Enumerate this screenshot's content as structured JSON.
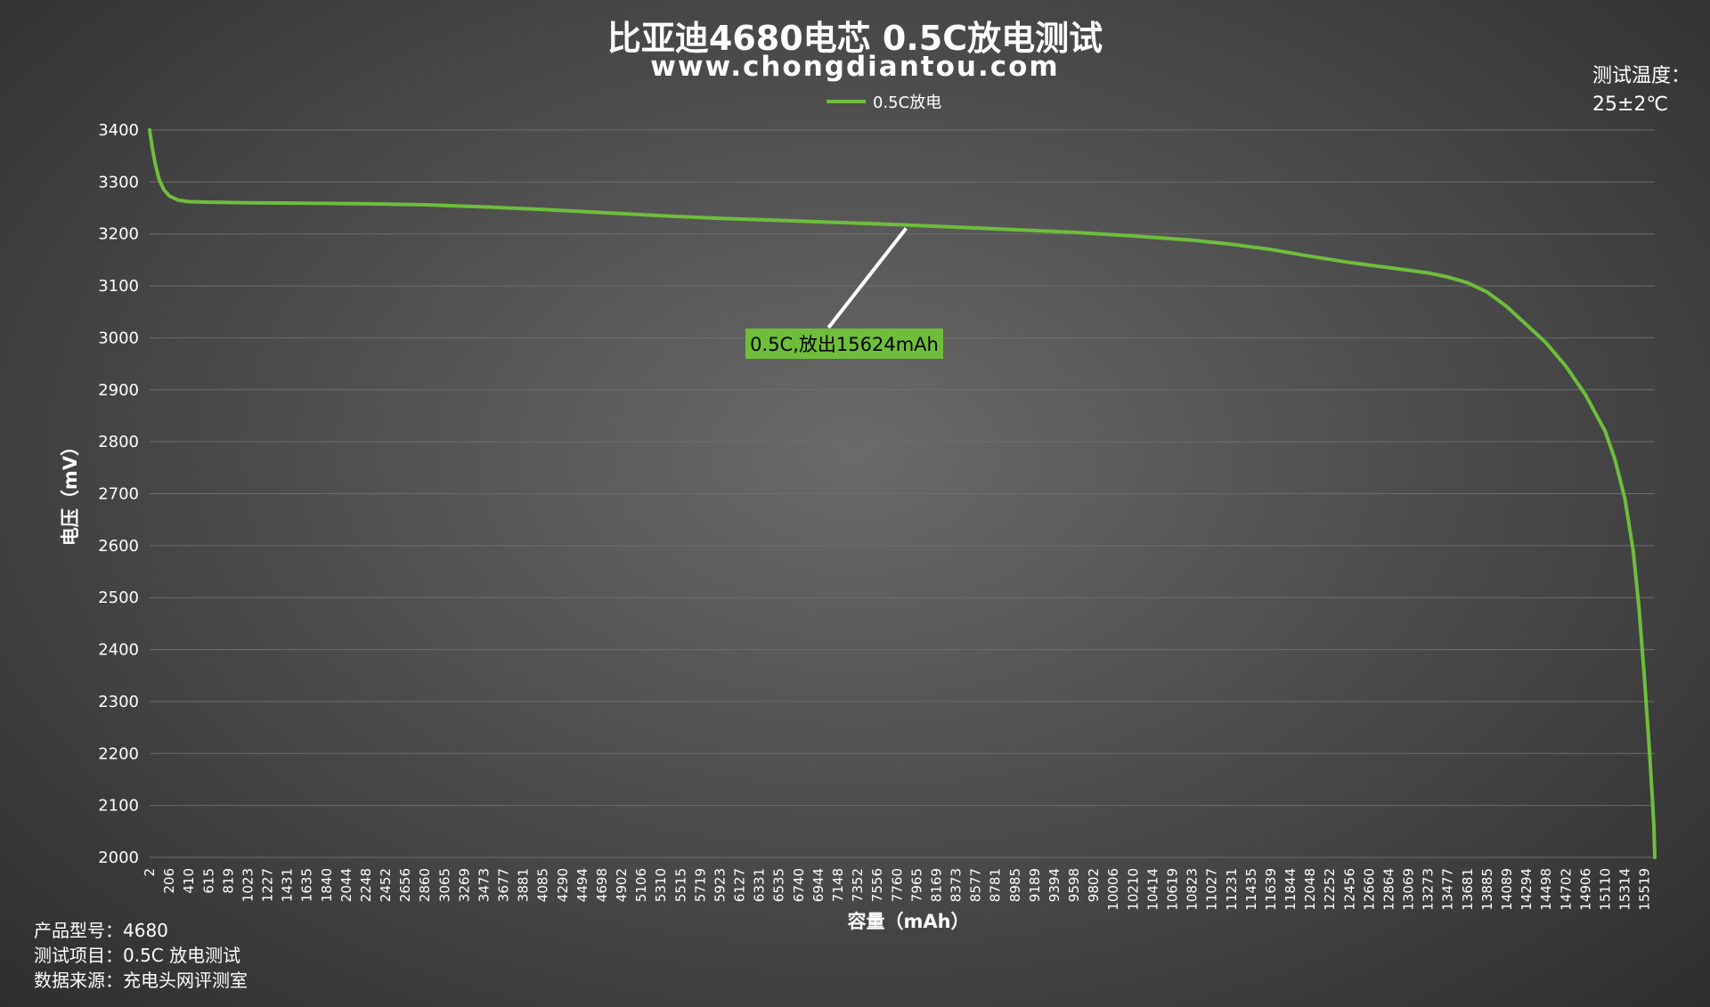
{
  "title": "比亚迪4680电芯  0.5C放电测试",
  "subtitle": "www.chongdiantou.com",
  "test_temp_label": "测试温度：",
  "test_temp_value": "25±2℃",
  "info": {
    "model": "产品型号：4680",
    "item": "测试项目：0.5C 放电测试",
    "source": "数据来源：充电头网评测室"
  },
  "colors": {
    "series": "#6ebe3c",
    "callout_bg": "#6ebe3c",
    "callout_line": "#ffffff"
  },
  "chart_data": {
    "type": "line",
    "title": "比亚迪4680电芯  0.5C放电测试",
    "xlabel": "容量（mAh）",
    "ylabel": "电压（mV）",
    "xlim": [
      2,
      15624
    ],
    "ylim": [
      2000,
      3400
    ],
    "yticks": [
      2000,
      2100,
      2200,
      2300,
      2400,
      2500,
      2600,
      2700,
      2800,
      2900,
      3000,
      3100,
      3200,
      3300,
      3400
    ],
    "xticks": [
      2,
      206,
      410,
      615,
      819,
      1023,
      1227,
      1431,
      1635,
      1840,
      2044,
      2248,
      2452,
      2656,
      2860,
      3065,
      3269,
      3473,
      3677,
      3881,
      4085,
      4290,
      4494,
      4698,
      4902,
      5106,
      5310,
      5515,
      5719,
      5923,
      6127,
      6331,
      6535,
      6740,
      6944,
      7148,
      7352,
      7556,
      7760,
      7965,
      8169,
      8373,
      8577,
      8781,
      8985,
      9189,
      9394,
      9598,
      9802,
      10006,
      10210,
      10414,
      10619,
      10823,
      11027,
      11231,
      11435,
      11639,
      11844,
      12048,
      12252,
      12456,
      12660,
      12864,
      13069,
      13273,
      13477,
      13681,
      13885,
      14089,
      14294,
      14498,
      14702,
      14906,
      15110,
      15314,
      15519
    ],
    "grid": true,
    "legend_position": "top-center",
    "series": [
      {
        "name": "0.5C放电",
        "x": [
          2,
          30,
          60,
          100,
          150,
          206,
          300,
          410,
          615,
          1023,
          1635,
          2248,
          2860,
          3473,
          4085,
          4698,
          5310,
          5923,
          6535,
          7148,
          7760,
          8373,
          8985,
          9598,
          10210,
          10823,
          11231,
          11639,
          12048,
          12456,
          12864,
          13273,
          13477,
          13681,
          13885,
          14089,
          14294,
          14498,
          14702,
          14906,
          15110,
          15212,
          15314,
          15400,
          15460,
          15519,
          15570,
          15600,
          15615,
          15624
        ],
        "y": [
          3400,
          3365,
          3335,
          3305,
          3285,
          3273,
          3265,
          3262,
          3261,
          3260,
          3259,
          3258,
          3256,
          3252,
          3247,
          3241,
          3235,
          3230,
          3226,
          3222,
          3218,
          3213,
          3208,
          3203,
          3196,
          3188,
          3180,
          3170,
          3157,
          3145,
          3135,
          3125,
          3117,
          3106,
          3088,
          3060,
          3025,
          2990,
          2945,
          2890,
          2820,
          2765,
          2690,
          2590,
          2480,
          2340,
          2200,
          2110,
          2060,
          2000
        ]
      }
    ],
    "annotation": {
      "text": "0.5C,放出15624mAh",
      "anchor": {
        "x": 7965,
        "y": 3216
      }
    }
  }
}
